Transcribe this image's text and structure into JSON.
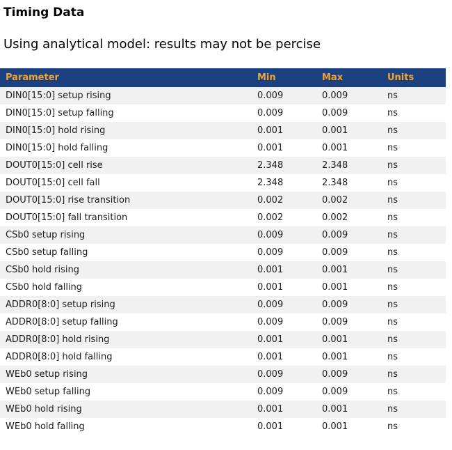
{
  "page": {
    "title": "Timing Data",
    "subtitle": "Using analytical model: results may not be percise"
  },
  "colors": {
    "header_bg": "#1c4181",
    "header_text": "#f0a232",
    "row_stripe": "#f1f1f1",
    "row_text": "#1c1c1c",
    "title_text": "#000000"
  },
  "table": {
    "columns": [
      {
        "key": "parameter",
        "label": "Parameter"
      },
      {
        "key": "min",
        "label": "Min"
      },
      {
        "key": "max",
        "label": "Max"
      },
      {
        "key": "units",
        "label": "Units"
      }
    ],
    "rows": [
      {
        "parameter": "DIN0[15:0] setup rising",
        "min": "0.009",
        "max": "0.009",
        "units": "ns"
      },
      {
        "parameter": "DIN0[15:0] setup falling",
        "min": "0.009",
        "max": "0.009",
        "units": "ns"
      },
      {
        "parameter": "DIN0[15:0] hold rising",
        "min": "0.001",
        "max": "0.001",
        "units": "ns"
      },
      {
        "parameter": "DIN0[15:0] hold falling",
        "min": "0.001",
        "max": "0.001",
        "units": "ns"
      },
      {
        "parameter": "DOUT0[15:0] cell rise",
        "min": "2.348",
        "max": "2.348",
        "units": "ns"
      },
      {
        "parameter": "DOUT0[15:0] cell fall",
        "min": "2.348",
        "max": "2.348",
        "units": "ns"
      },
      {
        "parameter": "DOUT0[15:0] rise transition",
        "min": "0.002",
        "max": "0.002",
        "units": "ns"
      },
      {
        "parameter": "DOUT0[15:0] fall transition",
        "min": "0.002",
        "max": "0.002",
        "units": "ns"
      },
      {
        "parameter": "CSb0 setup rising",
        "min": "0.009",
        "max": "0.009",
        "units": "ns"
      },
      {
        "parameter": "CSb0 setup falling",
        "min": "0.009",
        "max": "0.009",
        "units": "ns"
      },
      {
        "parameter": "CSb0 hold rising",
        "min": "0.001",
        "max": "0.001",
        "units": "ns"
      },
      {
        "parameter": "CSb0 hold falling",
        "min": "0.001",
        "max": "0.001",
        "units": "ns"
      },
      {
        "parameter": "ADDR0[8:0] setup rising",
        "min": "0.009",
        "max": "0.009",
        "units": "ns"
      },
      {
        "parameter": "ADDR0[8:0] setup falling",
        "min": "0.009",
        "max": "0.009",
        "units": "ns"
      },
      {
        "parameter": "ADDR0[8:0] hold rising",
        "min": "0.001",
        "max": "0.001",
        "units": "ns"
      },
      {
        "parameter": "ADDR0[8:0] hold falling",
        "min": "0.001",
        "max": "0.001",
        "units": "ns"
      },
      {
        "parameter": "WEb0 setup rising",
        "min": "0.009",
        "max": "0.009",
        "units": "ns"
      },
      {
        "parameter": "WEb0 setup falling",
        "min": "0.009",
        "max": "0.009",
        "units": "ns"
      },
      {
        "parameter": "WEb0 hold rising",
        "min": "0.001",
        "max": "0.001",
        "units": "ns"
      },
      {
        "parameter": "WEb0 hold falling",
        "min": "0.001",
        "max": "0.001",
        "units": "ns"
      }
    ]
  }
}
